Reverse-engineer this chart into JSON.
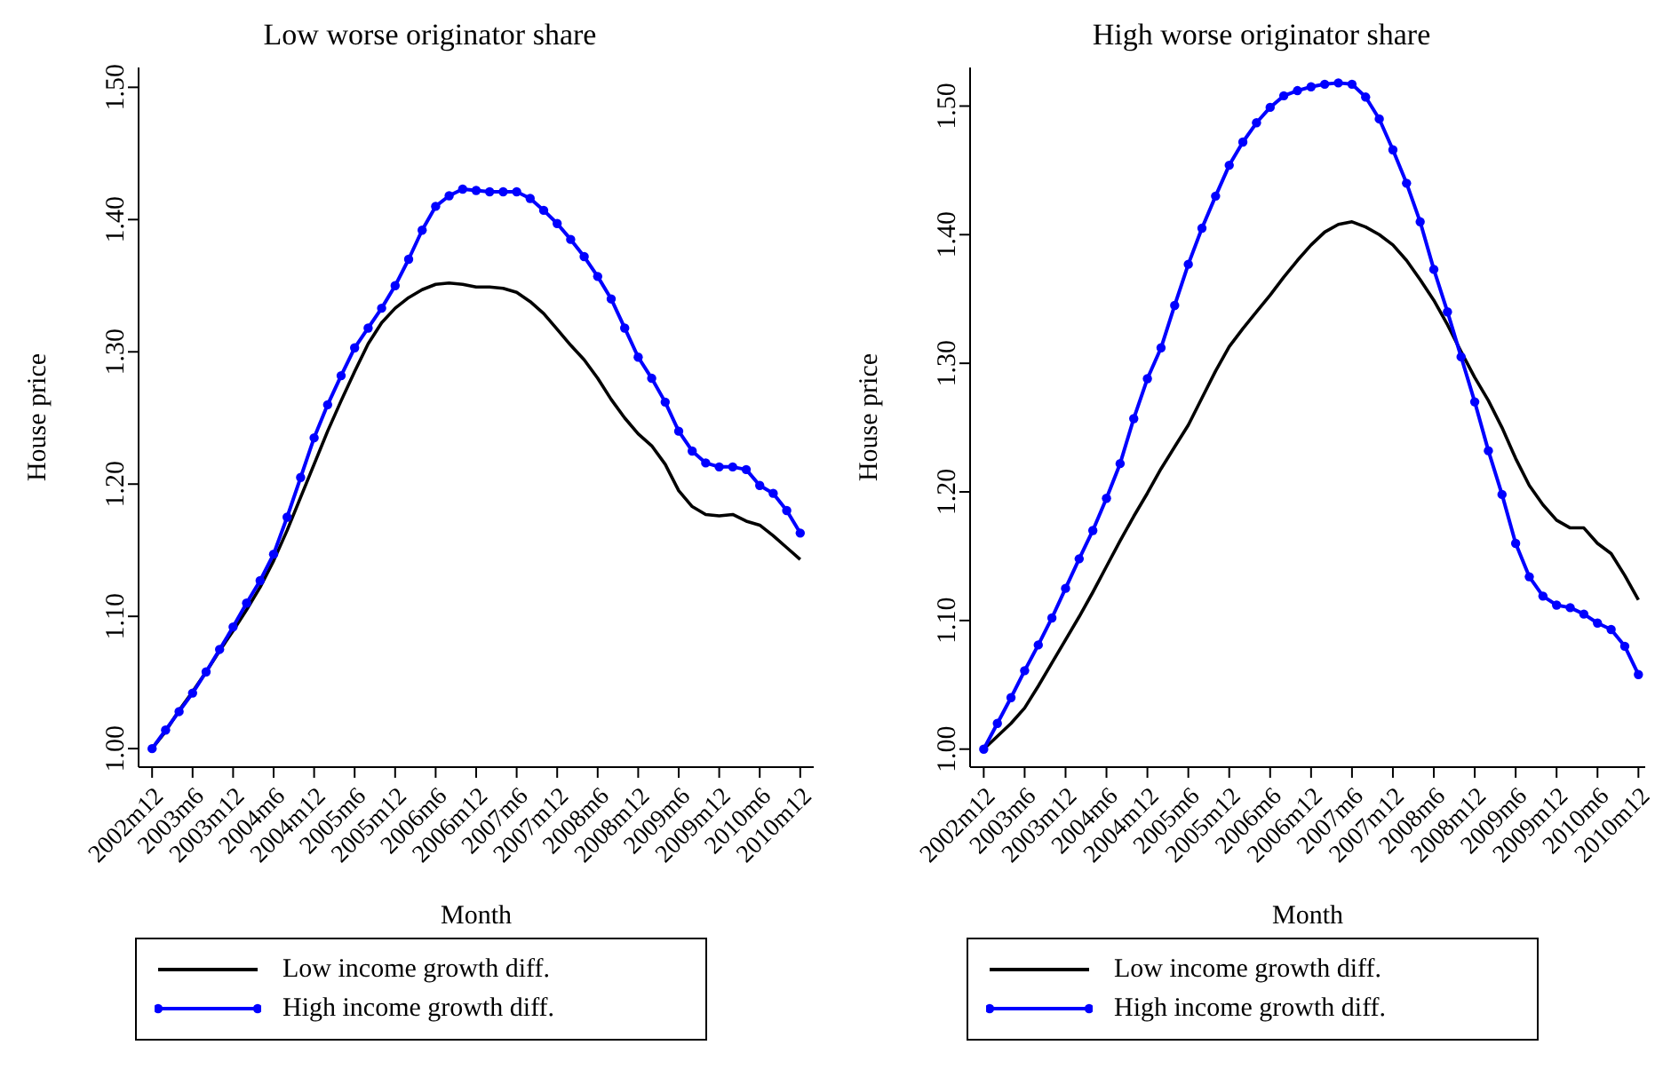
{
  "chart_data": [
    {
      "type": "line",
      "title": "Low worse originator share",
      "xlabel": "Month",
      "ylabel": "House price",
      "legend": "bottom",
      "x": [
        "2002-12",
        "2003-02",
        "2003-04",
        "2003-06",
        "2003-08",
        "2003-10",
        "2003-12",
        "2004-02",
        "2004-04",
        "2004-06",
        "2004-08",
        "2004-10",
        "2004-12",
        "2005-02",
        "2005-04",
        "2005-06",
        "2005-08",
        "2005-10",
        "2005-12",
        "2006-02",
        "2006-04",
        "2006-06",
        "2006-08",
        "2006-10",
        "2006-12",
        "2007-02",
        "2007-04",
        "2007-06",
        "2007-08",
        "2007-10",
        "2007-12",
        "2008-02",
        "2008-04",
        "2008-06",
        "2008-08",
        "2008-10",
        "2008-12",
        "2009-02",
        "2009-04",
        "2009-06",
        "2009-08",
        "2009-10",
        "2009-12",
        "2010-02",
        "2010-04",
        "2010-06",
        "2010-08",
        "2010-10",
        "2010-12"
      ],
      "xlim": [
        "2002-10",
        "2011-02"
      ],
      "xticks": [
        {
          "value": "2002-12",
          "label": "2002m12"
        },
        {
          "value": "2003-06",
          "label": "2003m6"
        },
        {
          "value": "2003-12",
          "label": "2003m12"
        },
        {
          "value": "2004-06",
          "label": "2004m6"
        },
        {
          "value": "2004-12",
          "label": "2004m12"
        },
        {
          "value": "2005-06",
          "label": "2005m6"
        },
        {
          "value": "2005-12",
          "label": "2005m12"
        },
        {
          "value": "2006-06",
          "label": "2006m6"
        },
        {
          "value": "2006-12",
          "label": "2006m12"
        },
        {
          "value": "2007-06",
          "label": "2007m6"
        },
        {
          "value": "2007-12",
          "label": "2007m12"
        },
        {
          "value": "2008-06",
          "label": "2008m6"
        },
        {
          "value": "2008-12",
          "label": "2008m12"
        },
        {
          "value": "2009-06",
          "label": "2009m6"
        },
        {
          "value": "2009-12",
          "label": "2009m12"
        },
        {
          "value": "2010-06",
          "label": "2010m6"
        },
        {
          "value": "2010-12",
          "label": "2010m12"
        }
      ],
      "ylim": [
        0.986,
        1.515
      ],
      "yticks": [
        {
          "value": 1,
          "label": "1.00"
        },
        {
          "value": 1.1,
          "label": "1.10"
        },
        {
          "value": 1.2,
          "label": "1.20"
        },
        {
          "value": 1.3,
          "label": "1.30"
        },
        {
          "value": 1.4,
          "label": "1.40"
        },
        {
          "value": 1.5,
          "label": "1.50"
        }
      ],
      "series": [
        {
          "name": "Low income growth diff.",
          "color": "#000000",
          "marker": "none",
          "values": [
            1.0,
            1.013,
            1.029,
            1.043,
            1.058,
            1.074,
            1.089,
            1.105,
            1.122,
            1.142,
            1.165,
            1.19,
            1.215,
            1.24,
            1.263,
            1.285,
            1.306,
            1.322,
            1.333,
            1.341,
            1.347,
            1.351,
            1.352,
            1.351,
            1.349,
            1.349,
            1.348,
            1.345,
            1.338,
            1.329,
            1.317,
            1.305,
            1.294,
            1.28,
            1.264,
            1.25,
            1.238,
            1.229,
            1.215,
            1.195,
            1.183,
            1.177,
            1.176,
            1.177,
            1.172,
            1.169,
            1.161,
            1.152,
            1.143
          ]
        },
        {
          "name": "High income growth diff.",
          "color": "#0000ff",
          "marker": "circle",
          "values": [
            1.0,
            1.014,
            1.028,
            1.042,
            1.058,
            1.075,
            1.092,
            1.11,
            1.127,
            1.147,
            1.175,
            1.205,
            1.235,
            1.26,
            1.282,
            1.303,
            1.318,
            1.333,
            1.35,
            1.37,
            1.392,
            1.41,
            1.418,
            1.423,
            1.422,
            1.421,
            1.421,
            1.421,
            1.416,
            1.407,
            1.397,
            1.385,
            1.372,
            1.357,
            1.34,
            1.318,
            1.296,
            1.28,
            1.262,
            1.24,
            1.225,
            1.216,
            1.213,
            1.213,
            1.211,
            1.199,
            1.193,
            1.18,
            1.163
          ]
        }
      ]
    },
    {
      "type": "line",
      "title": "High worse originator share",
      "xlabel": "Month",
      "ylabel": "House price",
      "legend": "bottom",
      "x": [
        "2002-12",
        "2003-02",
        "2003-04",
        "2003-06",
        "2003-08",
        "2003-10",
        "2003-12",
        "2004-02",
        "2004-04",
        "2004-06",
        "2004-08",
        "2004-10",
        "2004-12",
        "2005-02",
        "2005-04",
        "2005-06",
        "2005-08",
        "2005-10",
        "2005-12",
        "2006-02",
        "2006-04",
        "2006-06",
        "2006-08",
        "2006-10",
        "2006-12",
        "2007-02",
        "2007-04",
        "2007-06",
        "2007-08",
        "2007-10",
        "2007-12",
        "2008-02",
        "2008-04",
        "2008-06",
        "2008-08",
        "2008-10",
        "2008-12",
        "2009-02",
        "2009-04",
        "2009-06",
        "2009-08",
        "2009-10",
        "2009-12",
        "2010-02",
        "2010-04",
        "2010-06",
        "2010-08",
        "2010-10",
        "2010-12"
      ],
      "xlim": [
        "2002-10",
        "2011-01"
      ],
      "xticks": [
        {
          "value": "2002-12",
          "label": "2002m12"
        },
        {
          "value": "2003-06",
          "label": "2003m6"
        },
        {
          "value": "2003-12",
          "label": "2003m12"
        },
        {
          "value": "2004-06",
          "label": "2004m6"
        },
        {
          "value": "2004-12",
          "label": "2004m12"
        },
        {
          "value": "2005-06",
          "label": "2005m6"
        },
        {
          "value": "2005-12",
          "label": "2005m12"
        },
        {
          "value": "2006-06",
          "label": "2006m6"
        },
        {
          "value": "2006-12",
          "label": "2006m12"
        },
        {
          "value": "2007-06",
          "label": "2007m6"
        },
        {
          "value": "2007-12",
          "label": "2007m12"
        },
        {
          "value": "2008-06",
          "label": "2008m6"
        },
        {
          "value": "2008-12",
          "label": "2008m12"
        },
        {
          "value": "2009-06",
          "label": "2009m6"
        },
        {
          "value": "2009-12",
          "label": "2009m12"
        },
        {
          "value": "2010-06",
          "label": "2010m6"
        },
        {
          "value": "2010-12",
          "label": "2010m12"
        }
      ],
      "ylim": [
        0.986,
        1.53
      ],
      "yticks": [
        {
          "value": 1,
          "label": "1.00"
        },
        {
          "value": 1.1,
          "label": "1.10"
        },
        {
          "value": 1.2,
          "label": "1.20"
        },
        {
          "value": 1.3,
          "label": "1.30"
        },
        {
          "value": 1.4,
          "label": "1.40"
        },
        {
          "value": 1.5,
          "label": "1.50"
        }
      ],
      "series": [
        {
          "name": "Low income growth diff.",
          "color": "#000000",
          "marker": "none",
          "values": [
            1.0,
            1.01,
            1.02,
            1.032,
            1.049,
            1.067,
            1.085,
            1.103,
            1.122,
            1.142,
            1.162,
            1.181,
            1.199,
            1.218,
            1.235,
            1.252,
            1.273,
            1.294,
            1.313,
            1.327,
            1.34,
            1.353,
            1.367,
            1.38,
            1.392,
            1.402,
            1.408,
            1.41,
            1.406,
            1.4,
            1.392,
            1.38,
            1.365,
            1.349,
            1.33,
            1.309,
            1.289,
            1.271,
            1.25,
            1.226,
            1.205,
            1.19,
            1.178,
            1.172,
            1.172,
            1.16,
            1.152,
            1.135,
            1.116
          ]
        },
        {
          "name": "High income growth diff.",
          "color": "#0000ff",
          "marker": "circle",
          "values": [
            1.0,
            1.02,
            1.04,
            1.061,
            1.081,
            1.102,
            1.125,
            1.148,
            1.17,
            1.195,
            1.222,
            1.257,
            1.288,
            1.312,
            1.345,
            1.377,
            1.405,
            1.43,
            1.454,
            1.472,
            1.487,
            1.499,
            1.508,
            1.512,
            1.515,
            1.517,
            1.518,
            1.517,
            1.507,
            1.49,
            1.466,
            1.44,
            1.41,
            1.373,
            1.34,
            1.305,
            1.27,
            1.232,
            1.198,
            1.16,
            1.134,
            1.119,
            1.112,
            1.11,
            1.105,
            1.098,
            1.093,
            1.08,
            1.058
          ]
        }
      ]
    }
  ]
}
